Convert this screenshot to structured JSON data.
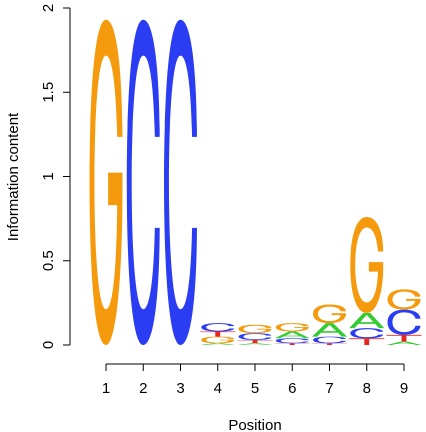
{
  "chart_data": {
    "type": "sequence-logo",
    "xlabel": "Position",
    "ylabel": "Information content",
    "ylim": [
      0,
      2
    ],
    "yticks": [
      0,
      0.5,
      1,
      1.5,
      2
    ],
    "ytick_labels": [
      "0",
      "0.5",
      "1",
      "1.5",
      "2"
    ],
    "positions": [
      "1",
      "2",
      "3",
      "4",
      "5",
      "6",
      "7",
      "8",
      "9"
    ],
    "letter_colors": {
      "A": "#33cc33",
      "C": "#2b3df2",
      "G": "#f59a0c",
      "T": "#e8261b"
    },
    "stacks": [
      [
        {
          "letter": "G",
          "height": 1.93
        }
      ],
      [
        {
          "letter": "C",
          "height": 1.93
        }
      ],
      [
        {
          "letter": "C",
          "height": 1.93
        }
      ],
      [
        {
          "letter": "A",
          "height": 0.01
        },
        {
          "letter": "G",
          "height": 0.04
        },
        {
          "letter": "T",
          "height": 0.03
        },
        {
          "letter": "C",
          "height": 0.05
        }
      ],
      [
        {
          "letter": "A",
          "height": 0.01
        },
        {
          "letter": "T",
          "height": 0.02
        },
        {
          "letter": "C",
          "height": 0.04
        },
        {
          "letter": "G",
          "height": 0.05
        }
      ],
      [
        {
          "letter": "T",
          "height": 0.01
        },
        {
          "letter": "C",
          "height": 0.03
        },
        {
          "letter": "A",
          "height": 0.04
        },
        {
          "letter": "G",
          "height": 0.05
        }
      ],
      [
        {
          "letter": "T",
          "height": 0.01
        },
        {
          "letter": "C",
          "height": 0.04
        },
        {
          "letter": "A",
          "height": 0.08
        },
        {
          "letter": "G",
          "height": 0.11
        }
      ],
      [
        {
          "letter": "T",
          "height": 0.04
        },
        {
          "letter": "C",
          "height": 0.06
        },
        {
          "letter": "A",
          "height": 0.09
        },
        {
          "letter": "G",
          "height": 0.57
        }
      ],
      [
        {
          "letter": "A",
          "height": 0.02
        },
        {
          "letter": "T",
          "height": 0.04
        },
        {
          "letter": "C",
          "height": 0.15
        },
        {
          "letter": "G",
          "height": 0.12
        }
      ]
    ]
  }
}
